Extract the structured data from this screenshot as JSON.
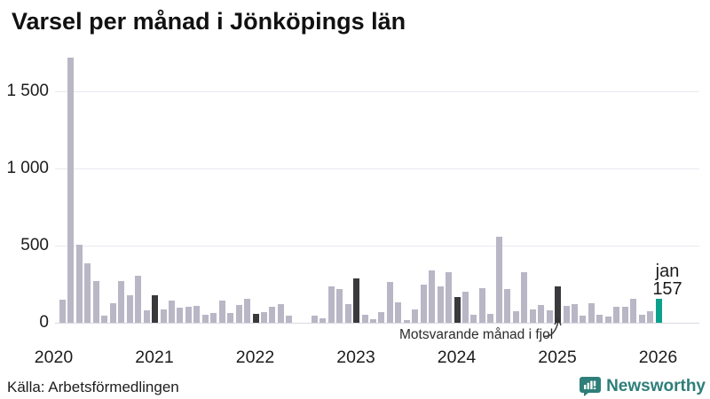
{
  "title": "Varsel per månad i Jönköpings län",
  "source": "Källa: Arbetsförmedlingen",
  "brand": {
    "name": "Newsworthy",
    "color": "#2e7e79"
  },
  "annotation": "Motsvarande månad i fjol",
  "highlight_label": {
    "line1": "jan",
    "line2": "157"
  },
  "colors": {
    "bar_normal": "#b9b6c6",
    "bar_last_year_jan": "#3a393b",
    "bar_highlight": "#0da08d",
    "gridline": "#eae8f0"
  },
  "chart_data": {
    "type": "bar",
    "title": "Varsel per månad i Jönköpings län",
    "xlabel": "",
    "ylabel": "",
    "ylim": [
      0,
      1750
    ],
    "grid": "horizontal",
    "yticks": [
      {
        "value": 0,
        "label": "0"
      },
      {
        "value": 500,
        "label": "500"
      },
      {
        "value": 1000,
        "label": "1 000"
      },
      {
        "value": 1500,
        "label": "1 500"
      }
    ],
    "year_ticks": [
      "2020",
      "2021",
      "2022",
      "2023",
      "2024",
      "2025",
      "2026"
    ],
    "legend_note": "dark bars = motsvarande månad i fjol (January of each year), teal = latest month (jan 2026)",
    "points": [
      {
        "month": "feb 2020",
        "value": 152,
        "type": "normal"
      },
      {
        "month": "mar 2020",
        "value": 1716,
        "type": "normal"
      },
      {
        "month": "apr 2020",
        "value": 508,
        "type": "normal"
      },
      {
        "month": "maj 2020",
        "value": 386,
        "type": "normal"
      },
      {
        "month": "jun 2020",
        "value": 270,
        "type": "normal"
      },
      {
        "month": "jul 2020",
        "value": 46,
        "type": "normal"
      },
      {
        "month": "aug 2020",
        "value": 129,
        "type": "normal"
      },
      {
        "month": "sep 2020",
        "value": 273,
        "type": "normal"
      },
      {
        "month": "okt 2020",
        "value": 177,
        "type": "normal"
      },
      {
        "month": "nov 2020",
        "value": 306,
        "type": "normal"
      },
      {
        "month": "dec 2020",
        "value": 81,
        "type": "normal"
      },
      {
        "month": "jan 2021",
        "value": 178,
        "type": "fjol"
      },
      {
        "month": "feb 2021",
        "value": 85,
        "type": "normal"
      },
      {
        "month": "mar 2021",
        "value": 146,
        "type": "normal"
      },
      {
        "month": "apr 2021",
        "value": 98,
        "type": "normal"
      },
      {
        "month": "maj 2021",
        "value": 101,
        "type": "normal"
      },
      {
        "month": "jun 2021",
        "value": 110,
        "type": "normal"
      },
      {
        "month": "jul 2021",
        "value": 50,
        "type": "normal"
      },
      {
        "month": "aug 2021",
        "value": 62,
        "type": "normal"
      },
      {
        "month": "sep 2021",
        "value": 144,
        "type": "normal"
      },
      {
        "month": "okt 2021",
        "value": 65,
        "type": "normal"
      },
      {
        "month": "nov 2021",
        "value": 115,
        "type": "normal"
      },
      {
        "month": "dec 2021",
        "value": 158,
        "type": "normal"
      },
      {
        "month": "jan 2022",
        "value": 58,
        "type": "fjol"
      },
      {
        "month": "feb 2022",
        "value": 67,
        "type": "normal"
      },
      {
        "month": "mar 2022",
        "value": 106,
        "type": "normal"
      },
      {
        "month": "apr 2022",
        "value": 119,
        "type": "normal"
      },
      {
        "month": "maj 2022",
        "value": 44,
        "type": "normal"
      },
      {
        "month": "jun 2022",
        "value": 0,
        "type": "normal"
      },
      {
        "month": "jul 2022",
        "value": 0,
        "type": "normal"
      },
      {
        "month": "aug 2022",
        "value": 44,
        "type": "normal"
      },
      {
        "month": "sep 2022",
        "value": 29,
        "type": "normal"
      },
      {
        "month": "okt 2022",
        "value": 233,
        "type": "normal"
      },
      {
        "month": "nov 2022",
        "value": 217,
        "type": "normal"
      },
      {
        "month": "dec 2022",
        "value": 119,
        "type": "normal"
      },
      {
        "month": "jan 2023",
        "value": 287,
        "type": "fjol"
      },
      {
        "month": "feb 2023",
        "value": 54,
        "type": "normal"
      },
      {
        "month": "mar 2023",
        "value": 23,
        "type": "normal"
      },
      {
        "month": "apr 2023",
        "value": 69,
        "type": "normal"
      },
      {
        "month": "maj 2023",
        "value": 265,
        "type": "normal"
      },
      {
        "month": "jun 2023",
        "value": 131,
        "type": "normal"
      },
      {
        "month": "jul 2023",
        "value": 15,
        "type": "normal"
      },
      {
        "month": "aug 2023",
        "value": 87,
        "type": "normal"
      },
      {
        "month": "sep 2023",
        "value": 250,
        "type": "normal"
      },
      {
        "month": "okt 2023",
        "value": 337,
        "type": "normal"
      },
      {
        "month": "nov 2023",
        "value": 233,
        "type": "normal"
      },
      {
        "month": "dec 2023",
        "value": 325,
        "type": "normal"
      },
      {
        "month": "jan 2024",
        "value": 165,
        "type": "fjol"
      },
      {
        "month": "feb 2024",
        "value": 202,
        "type": "normal"
      },
      {
        "month": "mar 2024",
        "value": 50,
        "type": "normal"
      },
      {
        "month": "apr 2024",
        "value": 227,
        "type": "normal"
      },
      {
        "month": "maj 2024",
        "value": 56,
        "type": "normal"
      },
      {
        "month": "jun 2024",
        "value": 558,
        "type": "normal"
      },
      {
        "month": "jul 2024",
        "value": 219,
        "type": "normal"
      },
      {
        "month": "aug 2024",
        "value": 75,
        "type": "normal"
      },
      {
        "month": "sep 2024",
        "value": 325,
        "type": "normal"
      },
      {
        "month": "okt 2024",
        "value": 87,
        "type": "normal"
      },
      {
        "month": "nov 2024",
        "value": 113,
        "type": "normal"
      },
      {
        "month": "dec 2024",
        "value": 81,
        "type": "normal"
      },
      {
        "month": "jan 2025",
        "value": 235,
        "type": "fjol"
      },
      {
        "month": "feb 2025",
        "value": 108,
        "type": "normal"
      },
      {
        "month": "mar 2025",
        "value": 121,
        "type": "normal"
      },
      {
        "month": "apr 2025",
        "value": 48,
        "type": "normal"
      },
      {
        "month": "maj 2025",
        "value": 125,
        "type": "normal"
      },
      {
        "month": "jun 2025",
        "value": 54,
        "type": "normal"
      },
      {
        "month": "jul 2025",
        "value": 42,
        "type": "normal"
      },
      {
        "month": "aug 2025",
        "value": 106,
        "type": "normal"
      },
      {
        "month": "sep 2025",
        "value": 106,
        "type": "normal"
      },
      {
        "month": "okt 2025",
        "value": 158,
        "type": "normal"
      },
      {
        "month": "nov 2025",
        "value": 54,
        "type": "normal"
      },
      {
        "month": "dec 2025",
        "value": 73,
        "type": "normal"
      },
      {
        "month": "jan 2026",
        "value": 157,
        "type": "highlight"
      }
    ]
  }
}
